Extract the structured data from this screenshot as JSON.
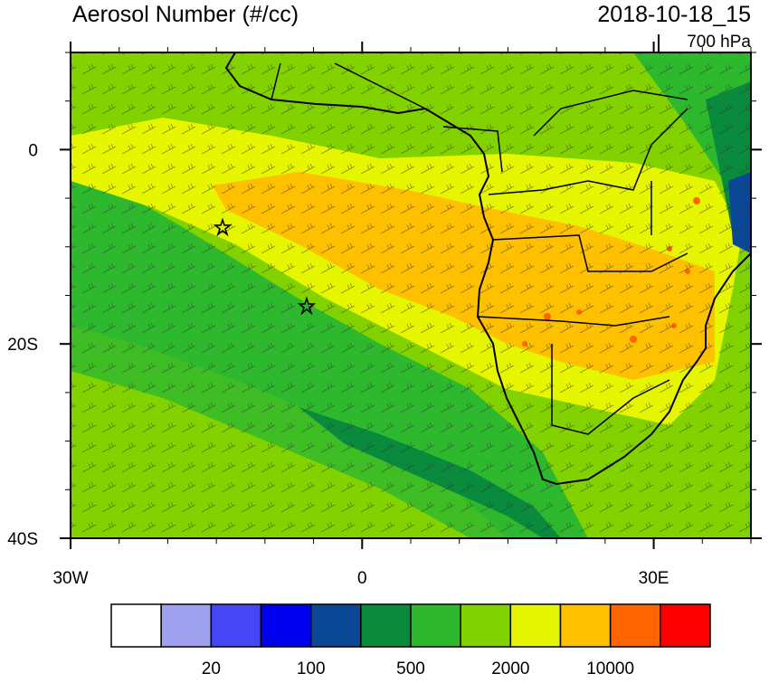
{
  "header": {
    "title": "Aerosol Number (#/cc)",
    "time": "2018-10-18_15",
    "level": "700 hPa"
  },
  "map": {
    "xlim": [
      -30,
      40
    ],
    "ylim": [
      -40,
      10
    ],
    "xticks": [
      {
        "value": -30,
        "label": "30W"
      },
      0,
      {
        "value": 30,
        "label": "30E"
      }
    ],
    "yticks": [
      0,
      {
        "value": -20,
        "label": "20S"
      },
      {
        "value": -40,
        "label": "40S"
      }
    ]
  },
  "colorbar": {
    "colors": [
      "#ffffff",
      "#a0a0f0",
      "#4646f5",
      "#0000f0",
      "#0a4896",
      "#0a8a3c",
      "#2db82d",
      "#82d200",
      "#e6f500",
      "#ffc000",
      "#ff6400",
      "#ff0000"
    ],
    "labels": [
      20,
      100,
      500,
      2000,
      10000
    ]
  }
}
